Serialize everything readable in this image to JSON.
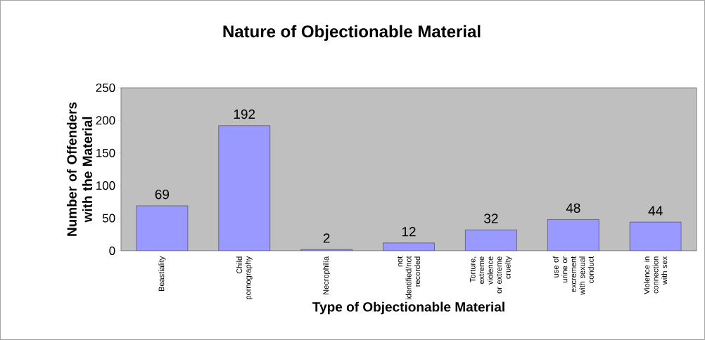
{
  "chart_data": {
    "type": "bar",
    "title": "Nature of Objectionable Material",
    "xlabel": "Type of Objectionable Material",
    "ylabel": "Number of Offenders with the Material",
    "categories": [
      "Beastiality",
      "Child pornography",
      "Necrophilia",
      "not identified/not recorded",
      "Torture, extreme violence or extreme cruelty",
      "use of urine or excrement with sexual conduct",
      "Violence in connection with sex"
    ],
    "values": [
      69,
      192,
      2,
      12,
      32,
      48,
      44
    ],
    "color": "#9999ff",
    "ylim": [
      0,
      250
    ],
    "yticks": [
      0,
      50,
      100,
      150,
      200,
      250
    ],
    "data_labels": true
  }
}
